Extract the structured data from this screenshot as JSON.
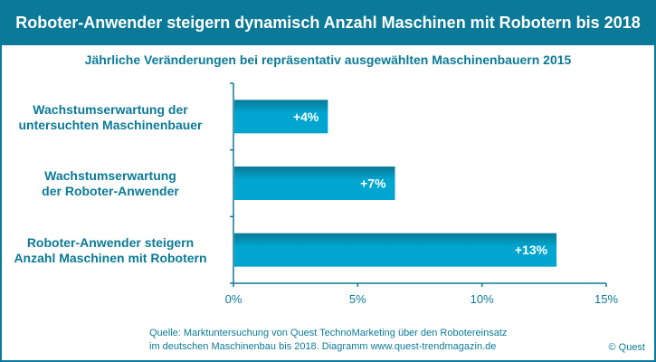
{
  "chart_data": {
    "type": "bar",
    "orientation": "horizontal",
    "title": "Roboter-Anwender steigern dynamisch Anzahl Maschinen mit Robotern bis 2018",
    "subtitle": "Jährliche Veränderungen bei repräsentativ ausgewählten Maschinenbauern 2015",
    "categories": [
      [
        "Wachstumserwartung der",
        "untersuchten Maschinenbauer"
      ],
      [
        "Wachstumserwartung",
        "der Roboter-Anwender"
      ],
      [
        "Roboter-Anwender steigern",
        "Anzahl Maschinen mit Robotern"
      ]
    ],
    "values": [
      3.8,
      6.5,
      13.0
    ],
    "data_labels": [
      "+4%",
      "+7%",
      "+13%"
    ],
    "xlim": [
      0,
      15
    ],
    "xticks": [
      0,
      5,
      10,
      15
    ],
    "xtick_labels": [
      "0%",
      "5%",
      "10%",
      "15%"
    ],
    "grid": false,
    "bar_color": "#00a6d0",
    "bar_color_top": "#0b7a98",
    "axis_color": "#0b7a98"
  },
  "footer": {
    "source_line1": "Quelle: Marktuntersuchung von Quest TechnoMarketing über den Robotereinsatz",
    "source_line2": "im  deutschen Maschinenbau bis 2018. Diagramm  www.quest-trendmagazin.de",
    "copyright": "© Quest"
  }
}
